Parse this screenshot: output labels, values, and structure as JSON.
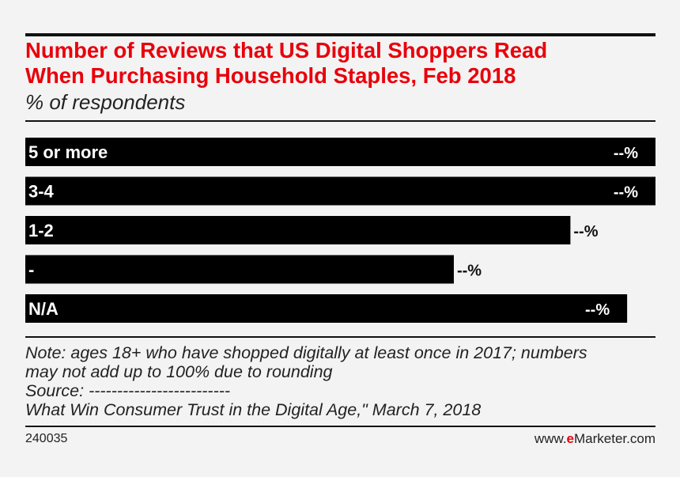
{
  "chart_data": {
    "type": "bar",
    "orientation": "horizontal",
    "title": "Number of Reviews that US Digital Shoppers Read When Purchasing Household Staples, Feb 2018",
    "title_lines": [
      "Number of Reviews that US Digital Shoppers Read",
      "When Purchasing Household Staples, Feb 2018"
    ],
    "subtitle": "% of respondents",
    "categories": [
      "5 or more",
      "3-4",
      "1-2",
      "-",
      "N/A"
    ],
    "values": [
      100,
      100,
      86.5,
      68,
      95.5
    ],
    "value_labels": [
      "--%",
      "--%",
      "--%",
      "--%",
      "--%"
    ],
    "xlim": [
      0,
      100
    ],
    "grid": false,
    "legend": "none",
    "bar_color": "#000000",
    "label_color": "#ffffff"
  },
  "notes": {
    "line1": "Note: ages 18+ who have shopped digitally at least once in 2017; numbers",
    "line2": "may not add up to 100% due to rounding",
    "source": "Source: -------------------------",
    "report": "What Win Consumer Trust in the Digital Age,\" March 7, 2018"
  },
  "footer": {
    "chart_id": "240035",
    "brand_prefix": "www.",
    "brand_strong": "e",
    "brand_rest": "Marketer.com"
  },
  "colors": {
    "accent": "#e8000b",
    "background": "#f3f3f3",
    "text": "#222222"
  }
}
